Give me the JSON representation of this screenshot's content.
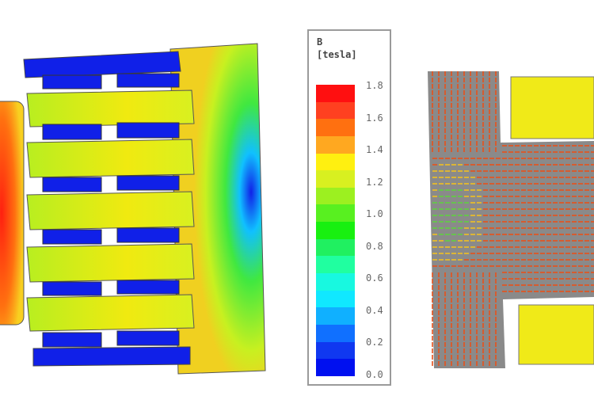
{
  "legend": {
    "title": "B",
    "unit": "[tesla]",
    "ticks": [
      "1.8",
      "1.6",
      "1.4",
      "1.2",
      "1.0",
      "0.8",
      "0.6",
      "0.4",
      "0.2",
      "0.0"
    ],
    "colors": [
      "#ff0f10",
      "#ff4020",
      "#ff7010",
      "#ffa820",
      "#fff010",
      "#d8f020",
      "#9cf020",
      "#58f020",
      "#18f010",
      "#20f060",
      "#20ffa0",
      "#18f8e0",
      "#10e8ff",
      "#10b0ff",
      "#1070ff",
      "#1038f0",
      "#0010f0"
    ]
  },
  "field_colors": {
    "high": "#ff2a10",
    "mid": "#f0e81a",
    "low": "#1020e8",
    "green": "#60e030",
    "arrow": "#e8501a",
    "background_gray": "#8a8a8a"
  }
}
